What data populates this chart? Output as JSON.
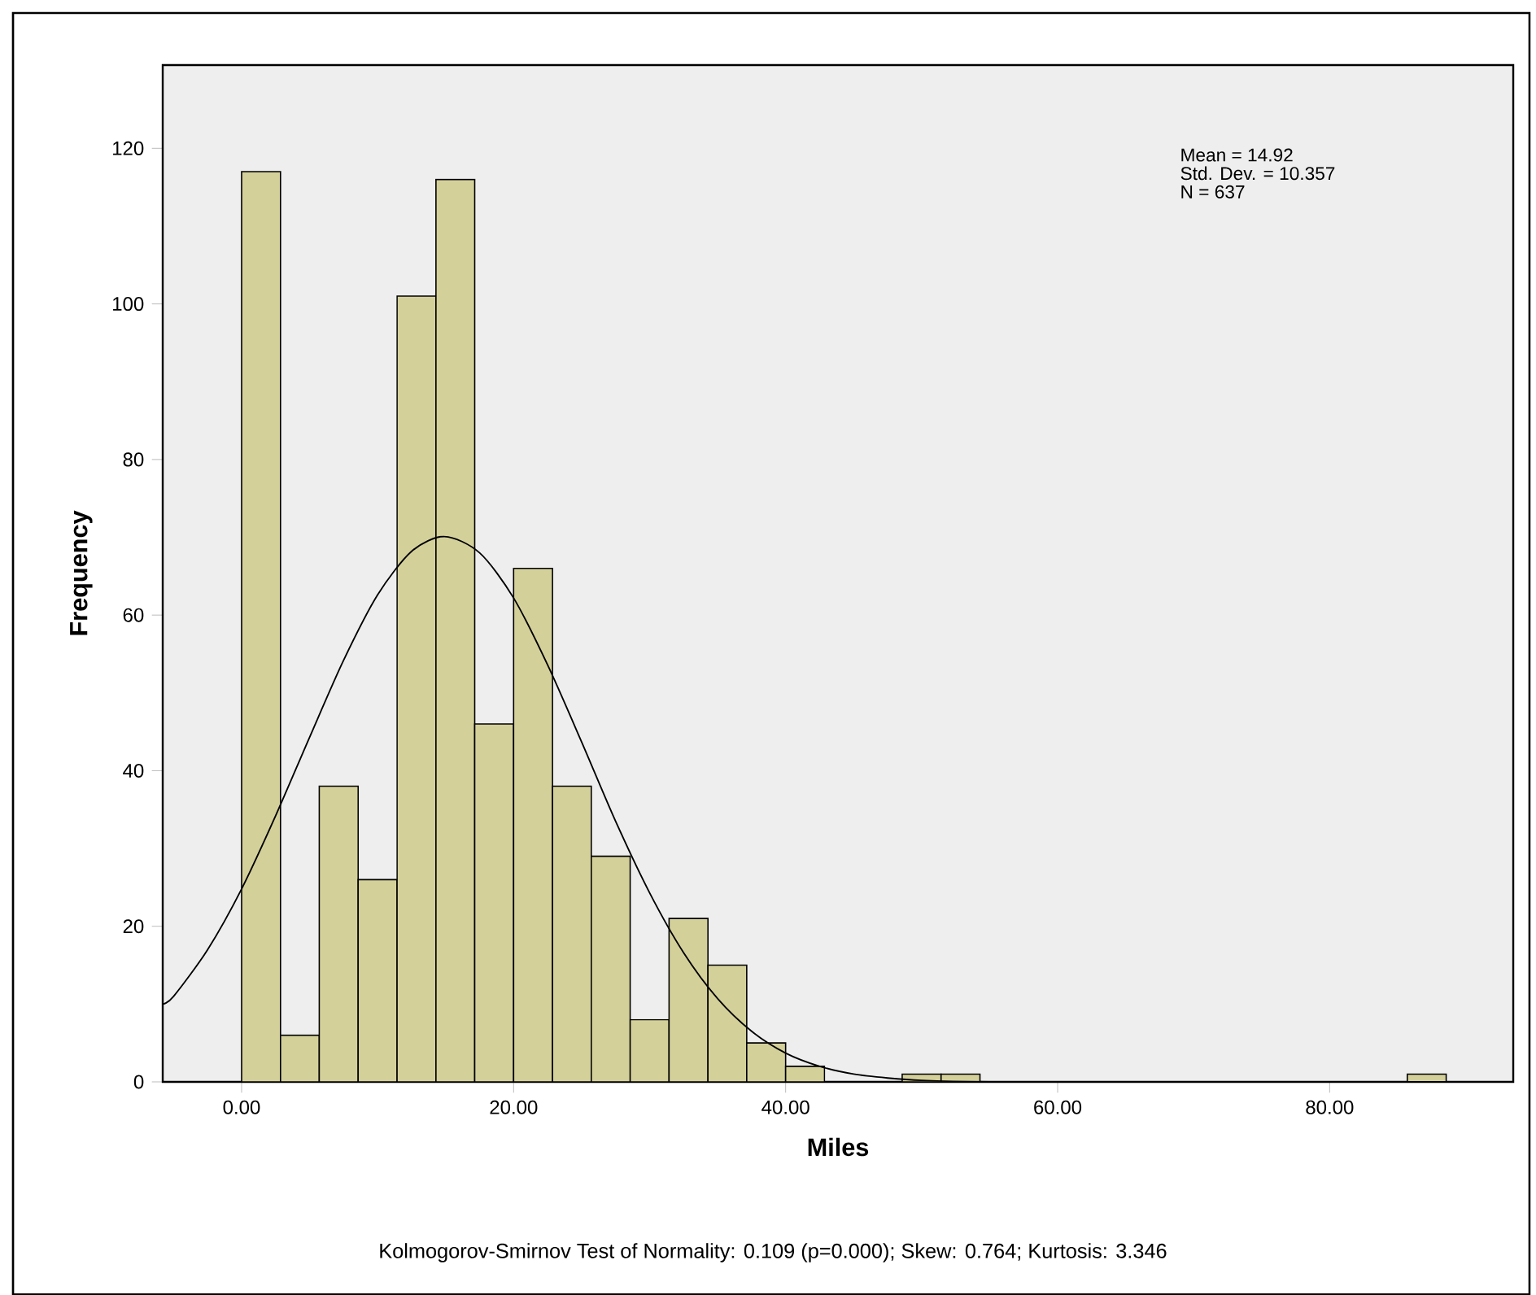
{
  "chart_data": {
    "type": "histogram",
    "xlabel": "Miles",
    "ylabel": "Frequency",
    "bins": [
      0,
      2.86,
      5.71,
      8.57,
      11.43,
      14.29,
      17.14,
      20,
      22.86,
      25.71,
      28.57,
      31.43,
      34.29,
      37.14,
      40,
      42.86,
      45.71,
      48.57,
      51.43,
      54.29,
      57.14,
      60,
      62.86,
      65.71,
      68.57,
      71.43,
      74.29,
      77.14,
      80,
      82.86,
      85.71,
      88.57
    ],
    "values": [
      117,
      6,
      38,
      26,
      101,
      116,
      46,
      66,
      38,
      29,
      8,
      21,
      15,
      5,
      2,
      0,
      0,
      1,
      1,
      0,
      0,
      0,
      0,
      0,
      0,
      0,
      0,
      0,
      0,
      0,
      1
    ],
    "color": "#d4d09a",
    "series": [
      {
        "type": "line",
        "color": "#000000",
        "x": [
          -5.8,
          -5,
          -2.5,
          0,
          2.5,
          5,
          7.5,
          10,
          12.5,
          14.92,
          17.5,
          20,
          22.5,
          25,
          27.5,
          30,
          32.5,
          35,
          37.5,
          40,
          42.5,
          45,
          47.5,
          50,
          55,
          60,
          93.5
        ],
        "values": [
          10.0,
          11.0,
          17.0,
          24.8,
          34.2,
          44.3,
          54.2,
          62.6,
          68.2,
          70.1,
          68.0,
          62.2,
          53.6,
          43.7,
          33.5,
          24.3,
          16.6,
          10.7,
          6.5,
          3.7,
          2.0,
          1.0,
          0.5,
          0.2,
          0,
          0,
          0
        ]
      }
    ],
    "xlim": [
      -5.8,
      93.5
    ],
    "ylim": [
      0,
      130.7
    ],
    "xticks": [
      {
        "value": 0,
        "label": "0.00"
      },
      {
        "value": 20,
        "label": "20.00"
      },
      {
        "value": 40,
        "label": "40.00"
      },
      {
        "value": 60,
        "label": "60.00"
      },
      {
        "value": 80,
        "label": "80.00"
      }
    ],
    "yticks": [
      0,
      20,
      40,
      60,
      80,
      100,
      120
    ],
    "annotations": [
      "Mean = 14.92",
      "Std. Dev. = 10.357",
      "N = 637",
      "Kolmogorov-Smirnov Test of Normality: 0.109 (p=0.000); Skew: 0.764; Kurtosis: 3.346"
    ]
  }
}
